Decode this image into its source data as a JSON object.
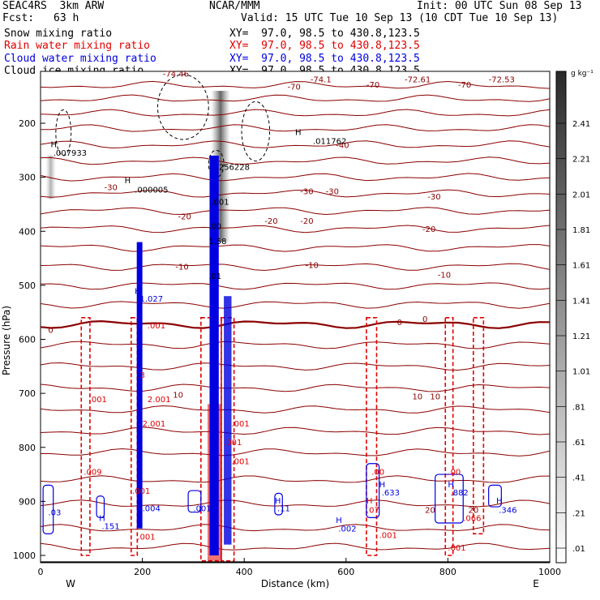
{
  "header": {
    "model": "SEAC4RS  3km ARW",
    "org": "NCAR/MMM",
    "init": "Init: 00 UTC Sun 08 Sep 13",
    "fcst_label": "Fcst:",
    "fcst_value": "63 h",
    "valid": "Valid: 15 UTC Tue 10 Sep 13 (10 CDT Tue 10 Sep 13)"
  },
  "fields": [
    {
      "label": "Snow mixing ratio",
      "xy": "XY=  97.0, 98.5 to 430.8,123.5",
      "color": "#000000"
    },
    {
      "label": "Rain water mixing ratio",
      "xy": "XY=  97.0, 98.5 to 430.8,123.5",
      "color": "#e00000"
    },
    {
      "label": "Cloud water mixing ratio",
      "xy": "XY=  97.0, 98.5 to 430.8,123.5",
      "color": "#0000e0"
    },
    {
      "label": "Cloud ice mixing ratio",
      "xy": "XY=  97.0, 98.5 to 430.8,123.5",
      "color": "#000000"
    }
  ],
  "chart_data": {
    "type": "cross-section contour",
    "xlabel": "Distance (km)",
    "ylabel": "Pressure (hPa)",
    "xlim": [
      0,
      1000
    ],
    "ylim": [
      1050,
      100
    ],
    "x_ticks": [
      0,
      200,
      400,
      600,
      800,
      1000
    ],
    "y_ticks": [
      200,
      300,
      400,
      500,
      600,
      700,
      800,
      900,
      1000
    ],
    "side_labels": {
      "left": "W",
      "right": "E"
    },
    "colorbar": {
      "unit": "g kg⁻¹",
      "levels": [
        "2.41",
        "2.21",
        "2.01",
        "1.81",
        "1.61",
        "1.41",
        "1.21",
        "1.01",
        ".81",
        ".61",
        ".41",
        ".21",
        ".01"
      ]
    },
    "temperature_contours": {
      "color": "#8b0000",
      "labels": [
        {
          "x": 240,
          "p": 108,
          "text": "-74.46"
        },
        {
          "x": 485,
          "p": 132,
          "text": "-70"
        },
        {
          "x": 530,
          "p": 118,
          "text": "-74.1"
        },
        {
          "x": 640,
          "p": 128,
          "text": "-70"
        },
        {
          "x": 715,
          "p": 118,
          "text": "-72.61"
        },
        {
          "x": 820,
          "p": 128,
          "text": "-70"
        },
        {
          "x": 880,
          "p": 118,
          "text": "-72.53"
        },
        {
          "x": 580,
          "p": 240,
          "text": "-40"
        },
        {
          "x": 125,
          "p": 318,
          "text": "-30"
        },
        {
          "x": 510,
          "p": 325,
          "text": "-30"
        },
        {
          "x": 560,
          "p": 325,
          "text": "-30"
        },
        {
          "x": 760,
          "p": 335,
          "text": "-30"
        },
        {
          "x": 270,
          "p": 372,
          "text": "-20"
        },
        {
          "x": 440,
          "p": 380,
          "text": "-20"
        },
        {
          "x": 510,
          "p": 380,
          "text": "-20"
        },
        {
          "x": 750,
          "p": 395,
          "text": "-20"
        },
        {
          "x": 265,
          "p": 465,
          "text": "-10"
        },
        {
          "x": 520,
          "p": 462,
          "text": "-10"
        },
        {
          "x": 780,
          "p": 480,
          "text": "-10"
        },
        {
          "x": 15,
          "p": 582,
          "text": "0"
        },
        {
          "x": 700,
          "p": 568,
          "text": "0"
        },
        {
          "x": 750,
          "p": 562,
          "text": "0"
        },
        {
          "x": 260,
          "p": 702,
          "text": "10"
        },
        {
          "x": 730,
          "p": 705,
          "text": "10"
        },
        {
          "x": 765,
          "p": 705,
          "text": "10"
        },
        {
          "x": 755,
          "p": 915,
          "text": "20"
        },
        {
          "x": 840,
          "p": 915,
          "text": "20"
        }
      ]
    },
    "maxima_labels": [
      {
        "x": 20,
        "p": 238,
        "text": "H",
        "color": "#000000"
      },
      {
        "x": 25,
        "p": 254,
        "text": ".007933",
        "color": "#000000"
      },
      {
        "x": 165,
        "p": 305,
        "text": "H",
        "color": "#000000"
      },
      {
        "x": 185,
        "p": 322,
        "text": ".000005",
        "color": "#000000"
      },
      {
        "x": 500,
        "p": 216,
        "text": "H",
        "color": "#000000"
      },
      {
        "x": 535,
        "p": 232,
        "text": ".011762",
        "color": "#000000"
      },
      {
        "x": 345,
        "p": 280,
        "text": ".256228",
        "color": "#000000"
      },
      {
        "x": 335,
        "p": 345,
        "text": ".001",
        "color": "#000000"
      },
      {
        "x": 330,
        "p": 390,
        "text": ".00",
        "color": "#000000"
      },
      {
        "x": 330,
        "p": 418,
        "text": "1.58",
        "color": "#000000"
      },
      {
        "x": 330,
        "p": 482,
        "text": ".01",
        "color": "#000000"
      },
      {
        "x": 185,
        "p": 510,
        "text": "H",
        "color": "#0000e0"
      },
      {
        "x": 195,
        "p": 524,
        "text": "1.027",
        "color": "#0000e0"
      },
      {
        "x": 210,
        "p": 574,
        "text": ".001",
        "color": "#e00000"
      },
      {
        "x": 195,
        "p": 665,
        "text": "3",
        "color": "#e00000"
      },
      {
        "x": 95,
        "p": 710,
        "text": ".001",
        "color": "#e00000"
      },
      {
        "x": 210,
        "p": 710,
        "text": "2.001",
        "color": "#e00000"
      },
      {
        "x": 200,
        "p": 755,
        "text": "2.001",
        "color": "#e00000"
      },
      {
        "x": 375,
        "p": 755,
        "text": ".001",
        "color": "#e00000"
      },
      {
        "x": 360,
        "p": 790,
        "text": ".001",
        "color": "#e00000"
      },
      {
        "x": 375,
        "p": 825,
        "text": ".001",
        "color": "#e00000"
      },
      {
        "x": 85,
        "p": 845,
        "text": ".009",
        "color": "#e00000"
      },
      {
        "x": 180,
        "p": 880,
        "text": ".001",
        "color": "#e00000"
      },
      {
        "x": 200,
        "p": 912,
        "text": ".004",
        "color": "#0000e0"
      },
      {
        "x": 190,
        "p": 965,
        "text": ".001",
        "color": "#e00000"
      },
      {
        "x": 15,
        "p": 920,
        "text": ".03",
        "color": "#0000e0"
      },
      {
        "x": 115,
        "p": 930,
        "text": "H",
        "color": "#0000e0"
      },
      {
        "x": 120,
        "p": 945,
        "text": ".151",
        "color": "#0000e0"
      },
      {
        "x": 300,
        "p": 912,
        "text": ".001",
        "color": "#0000e0"
      },
      {
        "x": 460,
        "p": 898,
        "text": "H",
        "color": "#0000e0"
      },
      {
        "x": 465,
        "p": 912,
        "text": ".11",
        "color": "#0000e0"
      },
      {
        "x": 580,
        "p": 934,
        "text": "H",
        "color": "#0000e0"
      },
      {
        "x": 585,
        "p": 950,
        "text": ".002",
        "color": "#0000e0"
      },
      {
        "x": 650,
        "p": 845,
        "text": ".00",
        "color": "#e00000"
      },
      {
        "x": 665,
        "p": 868,
        "text": "H",
        "color": "#0000e0"
      },
      {
        "x": 670,
        "p": 883,
        "text": ".633",
        "color": "#0000e0"
      },
      {
        "x": 640,
        "p": 898,
        "text": "H",
        "color": "#e00000"
      },
      {
        "x": 640,
        "p": 915,
        "text": ".07",
        "color": "#e00000"
      },
      {
        "x": 665,
        "p": 962,
        "text": ".001",
        "color": "#e00000"
      },
      {
        "x": 800,
        "p": 845,
        "text": ".00",
        "color": "#e00000"
      },
      {
        "x": 800,
        "p": 868,
        "text": "H",
        "color": "#0000e0"
      },
      {
        "x": 805,
        "p": 883,
        "text": ".882",
        "color": "#0000e0"
      },
      {
        "x": 830,
        "p": 930,
        "text": ".066",
        "color": "#e00000"
      },
      {
        "x": 800,
        "p": 985,
        "text": ".001",
        "color": "#e00000"
      },
      {
        "x": 895,
        "p": 898,
        "text": "H",
        "color": "#0000e0"
      },
      {
        "x": 900,
        "p": 915,
        "text": ".346",
        "color": "#0000e0"
      }
    ]
  }
}
